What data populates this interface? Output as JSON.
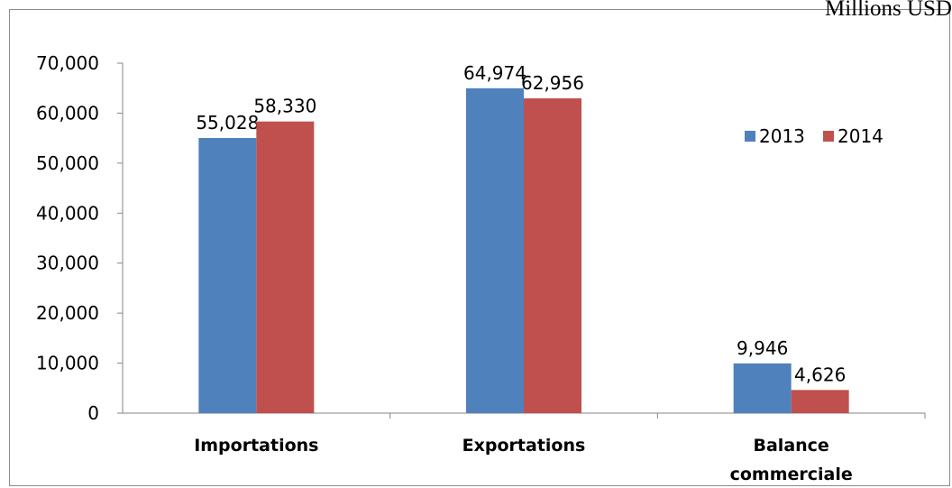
{
  "unit_label": "Millions USD",
  "colors": {
    "series_2013": "#4f81bd",
    "series_2014": "#c0504d"
  },
  "chart_data": {
    "type": "bar",
    "categories": [
      [
        "Importations"
      ],
      [
        "Exportations"
      ],
      [
        "Balance",
        "commerciale"
      ]
    ],
    "series": [
      {
        "name": "2013",
        "values": [
          55028,
          64974,
          9946
        ],
        "labels": [
          "55,028",
          "64,974",
          "9,946"
        ]
      },
      {
        "name": "2014",
        "values": [
          58330,
          62956,
          4626
        ],
        "labels": [
          "58,330",
          "62,956",
          "4,626"
        ]
      }
    ],
    "ylim": [
      0,
      70000
    ],
    "yticks": [
      0,
      10000,
      20000,
      30000,
      40000,
      50000,
      60000,
      70000
    ],
    "ytick_labels": [
      "0",
      "10,000",
      "20,000",
      "30,000",
      "40,000",
      "50,000",
      "60,000",
      "70,000"
    ],
    "legend_position": "right",
    "grid": false
  }
}
